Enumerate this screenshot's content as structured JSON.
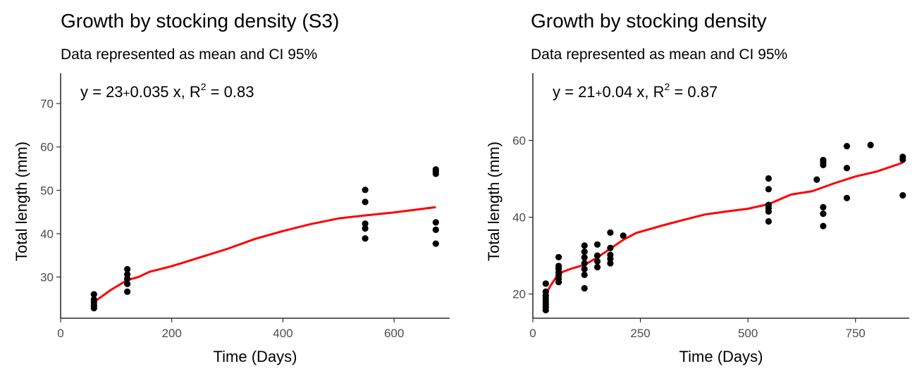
{
  "chart_data": [
    {
      "type": "scatter",
      "title": "Growth by stocking density (S3)",
      "subtitle": "Data represented as mean and CI 95%",
      "xlabel": "Time (Days)",
      "ylabel": "Total length (mm)",
      "xlim": [
        0,
        700
      ],
      "ylim": [
        20.5,
        77
      ],
      "xticks": [
        0,
        200,
        400,
        600
      ],
      "yticks": [
        30,
        40,
        50,
        60,
        70
      ],
      "grid": false,
      "annotation": {
        "eq_left": "y = 23",
        "eq_op": "+",
        "eq_right": "0.035 x,  R",
        "exp": "2",
        "tail": " = 0.83"
      },
      "points": [
        [
          60,
          22.8
        ],
        [
          60,
          23.4
        ],
        [
          60,
          24.1
        ],
        [
          60,
          24.8
        ],
        [
          60,
          26.0
        ],
        [
          120,
          26.6
        ],
        [
          120,
          28.4
        ],
        [
          120,
          29.6
        ],
        [
          120,
          30.6
        ],
        [
          120,
          31.8
        ],
        [
          548,
          38.9
        ],
        [
          548,
          41.2
        ],
        [
          548,
          42.3
        ],
        [
          548,
          47.3
        ],
        [
          548,
          50.1
        ],
        [
          675,
          37.7
        ],
        [
          675,
          40.9
        ],
        [
          675,
          42.6
        ],
        [
          675,
          53.8
        ],
        [
          675,
          54.3
        ],
        [
          675,
          54.8
        ]
      ],
      "trend": [
        [
          60,
          24.2
        ],
        [
          90,
          27.0
        ],
        [
          120,
          29.3
        ],
        [
          140,
          30.0
        ],
        [
          160,
          31.2
        ],
        [
          200,
          32.5
        ],
        [
          250,
          34.5
        ],
        [
          300,
          36.5
        ],
        [
          350,
          38.8
        ],
        [
          400,
          40.6
        ],
        [
          450,
          42.2
        ],
        [
          500,
          43.5
        ],
        [
          548,
          44.2
        ],
        [
          600,
          44.9
        ],
        [
          650,
          45.7
        ],
        [
          675,
          46.1
        ]
      ],
      "colors": {
        "points": "#000000",
        "trend": "#ff0000"
      }
    },
    {
      "type": "scatter",
      "title": "Growth by stocking density",
      "subtitle": "Data represented as mean and CI 95%",
      "xlabel": "Time (Days)",
      "ylabel": "Total length (mm)",
      "xlim": [
        0,
        875
      ],
      "ylim": [
        13.7,
        77.5
      ],
      "xticks": [
        0,
        250,
        500,
        750
      ],
      "yticks": [
        20,
        40,
        60
      ],
      "grid": false,
      "annotation": {
        "eq_left": "y = 21",
        "eq_op": "+",
        "eq_right": "0.04 x,  R",
        "exp": "2",
        "tail": " = 0.87"
      },
      "points": [
        [
          30,
          15.8
        ],
        [
          30,
          16.6
        ],
        [
          30,
          17.3
        ],
        [
          30,
          18.0
        ],
        [
          30,
          18.8
        ],
        [
          30,
          19.6
        ],
        [
          30,
          20.6
        ],
        [
          30,
          22.7
        ],
        [
          60,
          23.1
        ],
        [
          60,
          24.0
        ],
        [
          60,
          24.9
        ],
        [
          60,
          25.7
        ],
        [
          60,
          26.6
        ],
        [
          60,
          27.3
        ],
        [
          60,
          29.6
        ],
        [
          120,
          21.5
        ],
        [
          120,
          25.0
        ],
        [
          120,
          26.5
        ],
        [
          120,
          28.0
        ],
        [
          120,
          29.5
        ],
        [
          120,
          31.0
        ],
        [
          120,
          32.6
        ],
        [
          150,
          27.0
        ],
        [
          150,
          28.5
        ],
        [
          150,
          30.0
        ],
        [
          150,
          32.9
        ],
        [
          180,
          28.0
        ],
        [
          180,
          29.2
        ],
        [
          180,
          30.2
        ],
        [
          180,
          32.0
        ],
        [
          180,
          36.0
        ],
        [
          210,
          35.2
        ],
        [
          548,
          38.9
        ],
        [
          548,
          41.5
        ],
        [
          548,
          42.4
        ],
        [
          548,
          43.2
        ],
        [
          548,
          47.3
        ],
        [
          548,
          50.1
        ],
        [
          660,
          49.8
        ],
        [
          675,
          37.7
        ],
        [
          675,
          40.9
        ],
        [
          675,
          42.6
        ],
        [
          675,
          53.6
        ],
        [
          675,
          54.3
        ],
        [
          675,
          54.9
        ],
        [
          730,
          45.0
        ],
        [
          730,
          52.8
        ],
        [
          730,
          58.5
        ],
        [
          785,
          58.8
        ],
        [
          860,
          45.7
        ],
        [
          860,
          55.0
        ],
        [
          860,
          55.7
        ]
      ],
      "trend": [
        [
          30,
          19.8
        ],
        [
          40,
          22.0
        ],
        [
          55,
          24.5
        ],
        [
          70,
          25.8
        ],
        [
          90,
          26.6
        ],
        [
          120,
          27.6
        ],
        [
          150,
          29.5
        ],
        [
          180,
          31.8
        ],
        [
          210,
          34.1
        ],
        [
          240,
          35.9
        ],
        [
          300,
          37.8
        ],
        [
          350,
          39.3
        ],
        [
          400,
          40.7
        ],
        [
          450,
          41.5
        ],
        [
          500,
          42.2
        ],
        [
          548,
          43.4
        ],
        [
          600,
          45.9
        ],
        [
          650,
          46.8
        ],
        [
          700,
          48.8
        ],
        [
          750,
          50.6
        ],
        [
          800,
          51.9
        ],
        [
          860,
          54.2
        ]
      ],
      "colors": {
        "points": "#000000",
        "trend": "#ff0000"
      }
    }
  ]
}
